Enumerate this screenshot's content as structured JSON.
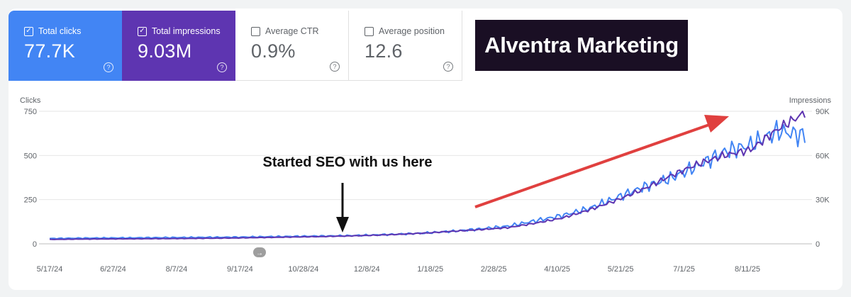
{
  "metrics": [
    {
      "label": "Total clicks",
      "value": "77.7K",
      "checked": true,
      "color": "#4285f4"
    },
    {
      "label": "Total impressions",
      "value": "9.03M",
      "checked": true,
      "color": "#5e35b1"
    },
    {
      "label": "Average CTR",
      "value": "0.9%",
      "checked": false
    },
    {
      "label": "Average position",
      "value": "12.6",
      "checked": false
    }
  ],
  "logo": {
    "text": "Alventra Marketing"
  },
  "chart_data": {
    "type": "line",
    "left_axis": {
      "label": "Clicks",
      "ticks": [
        "0",
        "250",
        "500",
        "750"
      ],
      "range": [
        0,
        750
      ]
    },
    "right_axis": {
      "label": "Impressions",
      "ticks": [
        "0",
        "30K",
        "60K",
        "90K"
      ],
      "range": [
        0,
        90000
      ]
    },
    "x_ticks": [
      "5/17/24",
      "6/27/24",
      "8/7/24",
      "9/17/24",
      "10/28/24",
      "12/8/24",
      "1/18/25",
      "2/28/25",
      "4/10/25",
      "5/21/25",
      "7/1/25",
      "8/11/25"
    ],
    "grid": true,
    "series": [
      {
        "name": "Total clicks",
        "axis": "left",
        "color": "#4285f4",
        "values": [
          30,
          32,
          33,
          34,
          35,
          36,
          37,
          38,
          40,
          42,
          44,
          46,
          50,
          55,
          62,
          72,
          85,
          100,
          130,
          160,
          200,
          260,
          320,
          370,
          440,
          520,
          560,
          640,
          610
        ]
      },
      {
        "name": "Total impressions",
        "axis": "right",
        "color": "#5e35b1",
        "values": [
          3000,
          3200,
          3300,
          3400,
          3500,
          3600,
          3800,
          4000,
          4300,
          4600,
          4900,
          5300,
          5800,
          6500,
          7400,
          8600,
          9700,
          11000,
          14000,
          17500,
          23000,
          29500,
          37000,
          46000,
          54000,
          60000,
          64000,
          78000,
          89000
        ]
      }
    ],
    "annotations": [
      {
        "text": "Started SEO with us here"
      }
    ]
  }
}
